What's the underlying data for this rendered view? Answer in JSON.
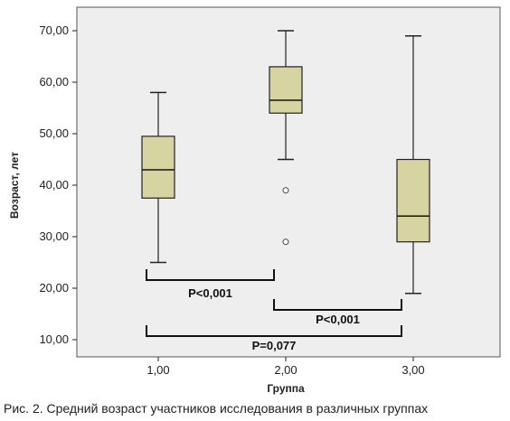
{
  "chart_data": {
    "type": "box",
    "xlabel": "Группа",
    "ylabel": "Возраст, лет",
    "categories": [
      "1,00",
      "2,00",
      "3,00"
    ],
    "ylim": [
      5,
      73
    ],
    "yticks": [
      "10,00",
      "20,00",
      "30,00",
      "40,00",
      "50,00",
      "60,00",
      "70,00"
    ],
    "ytick_values": [
      10,
      20,
      30,
      40,
      50,
      60,
      70
    ],
    "boxes": [
      {
        "category": "1,00",
        "whisker_low": 25,
        "q1": 37.5,
        "median": 43,
        "q3": 49.5,
        "whisker_high": 58,
        "outliers": []
      },
      {
        "category": "2,00",
        "whisker_low": 45,
        "q1": 54,
        "median": 56.5,
        "q3": 63,
        "whisker_high": 70,
        "outliers": [
          39,
          29
        ]
      },
      {
        "category": "3,00",
        "whisker_low": 19,
        "q1": 29,
        "median": 34,
        "q3": 45,
        "whisker_high": 69,
        "outliers": []
      }
    ],
    "comparisons": [
      {
        "from": "1,00",
        "to": "2,00",
        "label": "P<0,001"
      },
      {
        "from": "2,00",
        "to": "3,00",
        "label": "P<0,001"
      },
      {
        "from": "1,00",
        "to": "3,00",
        "label": "P=0,077"
      }
    ],
    "grid": false,
    "colors": {
      "box_fill": "#d6d4a0",
      "plot_bg": "#eeeeee",
      "stroke": "#222222"
    }
  },
  "caption": "Рис. 2. Средний возраст участников исследования в различных группах"
}
